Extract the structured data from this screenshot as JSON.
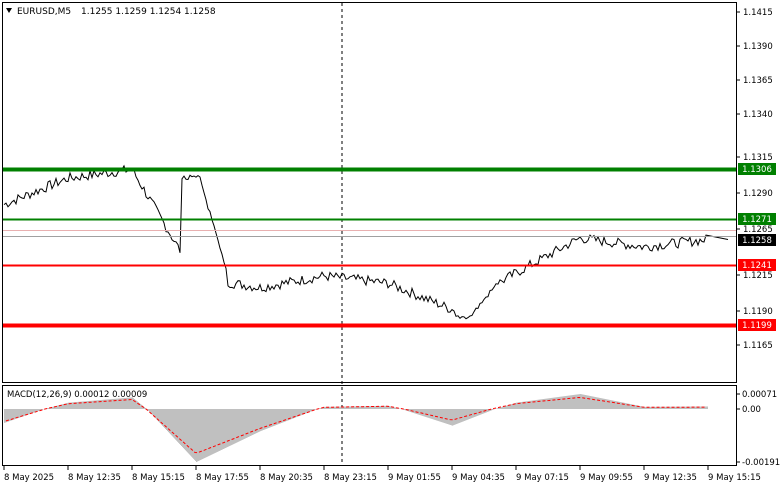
{
  "header": {
    "symbol": "EURUSD,M5",
    "ohlc": "1.1255 1.1259 1.1254 1.1258",
    "menu_icon": "triangle-down-icon"
  },
  "main_axis": {
    "ticks": [
      "1.1415",
      "1.1390",
      "1.1365",
      "1.1340",
      "1.1315",
      "1.1290",
      "1.1265",
      "1.1215",
      "1.1190",
      "1.1165"
    ]
  },
  "levels": [
    {
      "price": 1.1306,
      "label": "1.1306",
      "color": "#008000"
    },
    {
      "price": 1.1271,
      "label": "1.1271",
      "color": "#008000"
    },
    {
      "price": 1.1241,
      "label": "1.1241",
      "color": "#ff0000"
    },
    {
      "price": 1.1199,
      "label": "1.1199",
      "color": "#ff0000"
    }
  ],
  "current_price": {
    "label": "1.1258",
    "color": "#000000"
  },
  "macd": {
    "title": "MACD(12,26,9) 0.00012 0.00009",
    "ticks": [
      "0.00071",
      "0.00",
      "-0.00191"
    ]
  },
  "time_axis": {
    "labels": [
      "8 May 2025",
      "8 May 12:35",
      "8 May 15:15",
      "8 May 17:55",
      "8 May 20:35",
      "8 May 23:15",
      "9 May 01:55",
      "9 May 04:35",
      "9 May 07:15",
      "9 May 09:55",
      "9 May 12:35",
      "9 May 15:15"
    ]
  },
  "chart_data": {
    "type": "line",
    "title": "EURUSD,M5",
    "x": [
      "8 May 2025",
      "8 May 12:35",
      "8 May 15:15",
      "8 May 17:55",
      "8 May 20:35",
      "8 May 23:15",
      "9 May 01:55",
      "9 May 04:35",
      "9 May 07:15",
      "9 May 09:55",
      "9 May 12:35",
      "9 May 15:15"
    ],
    "series": [
      {
        "name": "EURUSD,M5",
        "values": [
          1.1282,
          1.13,
          1.1306,
          1.1232,
          1.1225,
          1.1233,
          1.1228,
          1.121,
          1.1235,
          1.1259,
          1.1253,
          1.1258
        ]
      }
    ],
    "ylim": [
      1.1162,
      1.142
    ],
    "macd": {
      "histogram": [
        -0.0005,
        0.0003,
        0.00055,
        -0.00191,
        -0.0008,
        0.0001,
        0.00015,
        -0.0006,
        0.0003,
        0.00071,
        0.0001,
        0.00012
      ],
      "signal": [
        -0.00045,
        0.00025,
        0.00045,
        -0.0016,
        -0.0007,
        8e-05,
        0.00013,
        -0.0004,
        0.00025,
        0.00055,
        8e-05,
        9e-05
      ],
      "ylim": [
        -0.002,
        0.0008
      ]
    },
    "grid": false
  }
}
